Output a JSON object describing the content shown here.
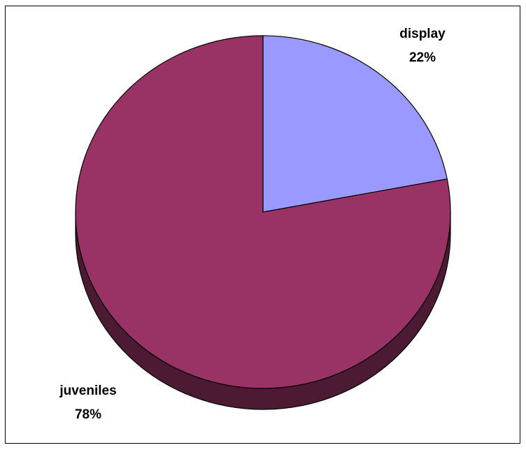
{
  "chart_data": {
    "type": "pie",
    "style": "3d",
    "title": "",
    "slices": [
      {
        "label": "display",
        "percent_label": "22%",
        "value": 22,
        "color": "#9999FF",
        "side_color": "#5c5c99"
      },
      {
        "label": "juveniles",
        "percent_label": "78%",
        "value": 78,
        "color": "#993366",
        "side_color": "#4d1a33"
      }
    ],
    "start_angle_deg": 0,
    "direction": "clockwise",
    "legend": "none",
    "outline_color": "#000000"
  }
}
